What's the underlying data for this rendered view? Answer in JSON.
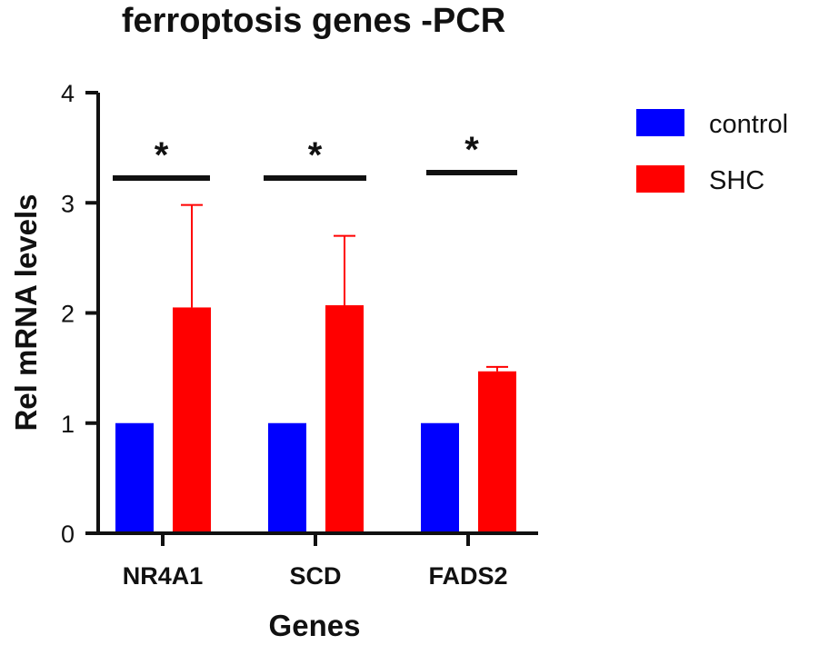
{
  "chart_data": {
    "type": "bar",
    "title": "ferroptosis genes -PCR",
    "xlabel": "Genes",
    "ylabel": "Rel mRNA levels",
    "categories": [
      "NR4A1",
      "SCD",
      "FADS2"
    ],
    "ylim": [
      0,
      4
    ],
    "yticks": [
      0,
      1,
      2,
      3,
      4
    ],
    "series": [
      {
        "name": "control",
        "color": "#0000ff",
        "values": [
          1.0,
          1.0,
          1.0
        ],
        "error": [
          0,
          0,
          0
        ]
      },
      {
        "name": "SHC",
        "color": "#ff0000",
        "values": [
          2.05,
          2.07,
          1.47
        ],
        "error": [
          0.93,
          0.63,
          0.04
        ]
      }
    ],
    "significance": [
      "*",
      "*",
      "*"
    ],
    "legend_position": "top-right",
    "grid": false
  }
}
